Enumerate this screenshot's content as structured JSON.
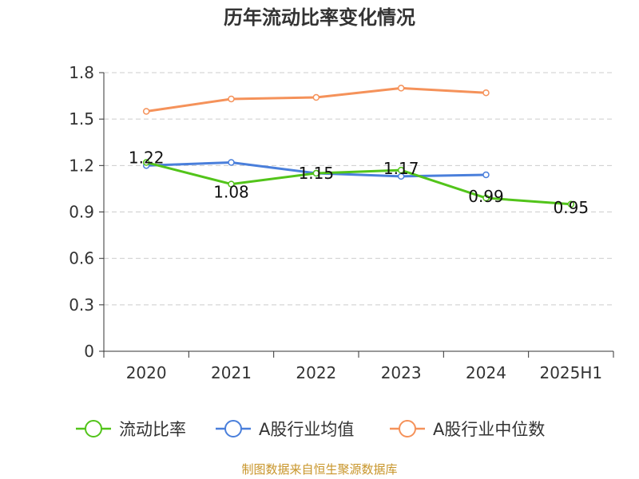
{
  "chart_data": {
    "type": "line",
    "title": "历年流动比率变化情况",
    "categories": [
      "2020",
      "2021",
      "2022",
      "2023",
      "2024",
      "2025H1"
    ],
    "ylim": [
      0,
      1.8
    ],
    "yticks": [
      "0",
      "0.3",
      "0.6",
      "0.9",
      "1.2",
      "1.5",
      "1.8"
    ],
    "grid": true,
    "legend_position": "bottom",
    "series": [
      {
        "name": "流动比率",
        "color": "#52c41a",
        "values": [
          1.22,
          1.08,
          1.15,
          1.17,
          0.99,
          0.95
        ],
        "labels": [
          "1.22",
          "1.08",
          "1.15",
          "1.17",
          "0.99",
          "0.95"
        ]
      },
      {
        "name": "A股行业均值",
        "color": "#4a7fdb",
        "values": [
          1.2,
          1.22,
          1.15,
          1.13,
          1.14,
          null
        ]
      },
      {
        "name": "A股行业中位数",
        "color": "#f5925a",
        "values": [
          1.55,
          1.63,
          1.64,
          1.7,
          1.67,
          null
        ]
      }
    ]
  },
  "source": {
    "text": "制图数据来自恒生聚源数据库",
    "color": "#c8952a"
  }
}
